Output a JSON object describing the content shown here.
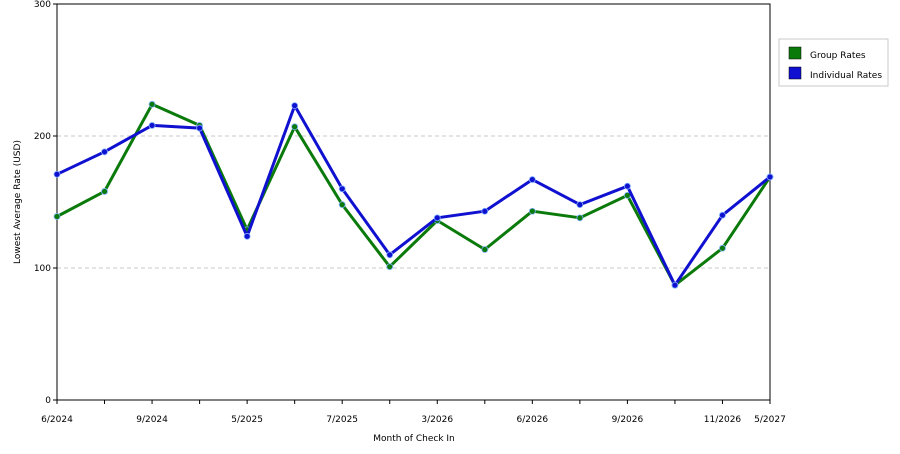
{
  "chart_data": {
    "type": "line",
    "xlabel": "Month of Check In",
    "ylabel": "Lowest Average Rate (USD)",
    "ylim": [
      0,
      300
    ],
    "yticks": [
      "0",
      "100",
      "200",
      "300"
    ],
    "grid": true,
    "legend_position": "right",
    "categories": [
      "6/2024",
      "",
      "9/2024",
      "",
      "5/2025",
      "",
      "7/2025",
      "",
      "3/2026",
      "",
      "6/2026",
      "",
      "9/2026",
      "",
      "11/2026",
      "5/2027"
    ],
    "series": [
      {
        "name": "Group Rates",
        "color": "#0a7a0a",
        "values": [
          139,
          158,
          224,
          208,
          129,
          207,
          148,
          101,
          136,
          114,
          143,
          138,
          155,
          87,
          115,
          169
        ]
      },
      {
        "name": "Individual Rates",
        "color": "#1010d0",
        "values": [
          171,
          188,
          208,
          206,
          124,
          223,
          160,
          110,
          138,
          143,
          167,
          148,
          162,
          87,
          140,
          169
        ]
      }
    ]
  }
}
